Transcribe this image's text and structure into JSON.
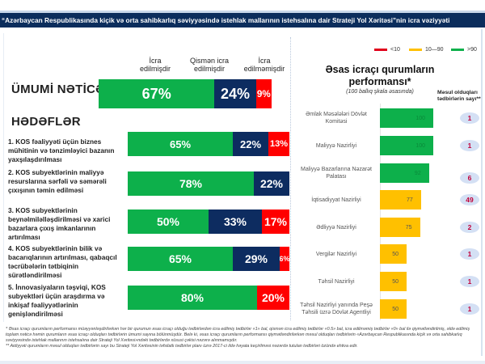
{
  "title": "“Azərbaycan Respublikasında kiçik və orta sahibkarlıq səviyyəsində istehlak mallarının istehsalına dair Strateji Yol Xəritəsi”nin icra vəziyyəti",
  "left": {
    "column_headers": [
      "İcra\nedilmişdir",
      "Qismən icra\nedilmişdir",
      "İcra\nedilməmişdir"
    ],
    "overall_label": "ÜMUMİ NƏTİCƏ",
    "goals_label": "HƏDƏFLƏR"
  },
  "right": {
    "legend": [
      {
        "label": "<10",
        "color": "#e0001b"
      },
      {
        "label": "10—90",
        "color": "#ffc000"
      },
      {
        "label": ">90",
        "color": "#0db04b"
      }
    ],
    "title": "Əsas icraçı qurumların performansı*",
    "subtitle": "(100 ballıq şkala əsasında)",
    "count_header": "Məsul olduqları tədbirlərin sayı**"
  },
  "footnotes": [
    "* Əsas icraçı qurumların performansı müəyyənləşdirilərkən hər bir qurumun əsas icraçı olduğu tədbirlərdən icra edilmiş tədbirlər «1» bal, qismən icra edilmiş tədbirlər «0.5» bal, icra edilməmiş tədbirlər «0» bal ilə qiymətləndirilmiş, əldə edilmiş toplam nəticə həmin qurumların əsas icraçı olduqları tədbirlərin ümumi sayına bölünmüşdür. Belə ki, əsas icraçı qurumların performansı qiymətləndirilərkən məsul olduqları tədbirlərin «Azərbaycan Respublikasında kiçik və orta sahibkarlıq səviyyəsində istehlak mallarının istehsalına dair Strateji Yol Xəritəsi»ndəki tədbirlərdə xüsusi çəkisi nəzərə alınmamışdır.",
    "** Aidiyyəti qurumların məsul olduqları tədbirlərin sayı bu Strateji Yol Xəritəsinin təfsilatlı tədbirlər planı üzrə 2017-ci ildə həyata keçirilməsi nəzərdə tutulan tədbirləri özündə ehtiva edir."
  ],
  "chart_data": [
    {
      "type": "bar",
      "stacked": true,
      "orientation": "horizontal",
      "title": "",
      "categories": [
        "ÜMUMİ NƏTİCƏ",
        "1. KOS fəaliyyəti üçün biznes mühitinin və tənzimləyici bazanın yaxşılaşdırılması",
        "2. KOS subyektlərinin maliyyə resurslarına sərfəli və səmərəli çıxışının təmin edilməsi",
        "3. KOS subyektlərinin beynəlmiləlləşdirilməsi və xarici bazarlara çıxış imkanlarının artırılması",
        "4. KOS subyektlərinin bilik və bacarıqlarının artırılması, qabaqcıl təcrübələrin tətbiqinin sürətləndirilməsi",
        "5. İnnovasiyaların təşviqi, KOS subyektləri üçün araşdırma və inkişaf fəaliyyətlərinin genişləndirilməsi"
      ],
      "series": [
        {
          "name": "İcra edilmişdir",
          "color": "#0db04b",
          "values": [
            67,
            65,
            78,
            50,
            65,
            80
          ]
        },
        {
          "name": "Qismən icra edilmişdir",
          "color": "#0d2c60",
          "values": [
            24,
            22,
            22,
            33,
            29,
            0
          ]
        },
        {
          "name": "İcra edilməmişdir",
          "color": "#ff0000",
          "values": [
            9,
            13,
            0,
            17,
            6,
            20
          ]
        }
      ],
      "unit": "%",
      "xlim": [
        0,
        100
      ]
    },
    {
      "type": "bar",
      "orientation": "horizontal",
      "title": "Əsas icraçı qurumların performansı*",
      "subtitle": "(100 ballıq şkala əsasında)",
      "categories": [
        "Əmlak Məsələləri Dövlət Komitəsi",
        "Maliyyə Nazirliyi",
        "Maliyyə Bazarlarına Nəzarət Palatası",
        "İqtisadiyyat Nazirliyi",
        "Ədliyyə Nazirliyi",
        "Vergilər Nazirliyi",
        "Təhsil Nazirliyi",
        "Təhsil Nazirliyi yanında Peşə Təhsili üzrə Dövlət Agentliyi"
      ],
      "values": [
        100,
        100,
        92,
        77,
        75,
        50,
        50,
        50
      ],
      "responsible_measures_count": [
        1,
        1,
        6,
        49,
        2,
        1,
        1,
        1
      ],
      "color_thresholds": [
        {
          "label": "<10",
          "color": "#e0001b"
        },
        {
          "label": "10—90",
          "color": "#ffc000"
        },
        {
          "label": ">90",
          "color": "#0db04b"
        }
      ],
      "xlim": [
        0,
        100
      ],
      "legend": "top-right"
    }
  ]
}
